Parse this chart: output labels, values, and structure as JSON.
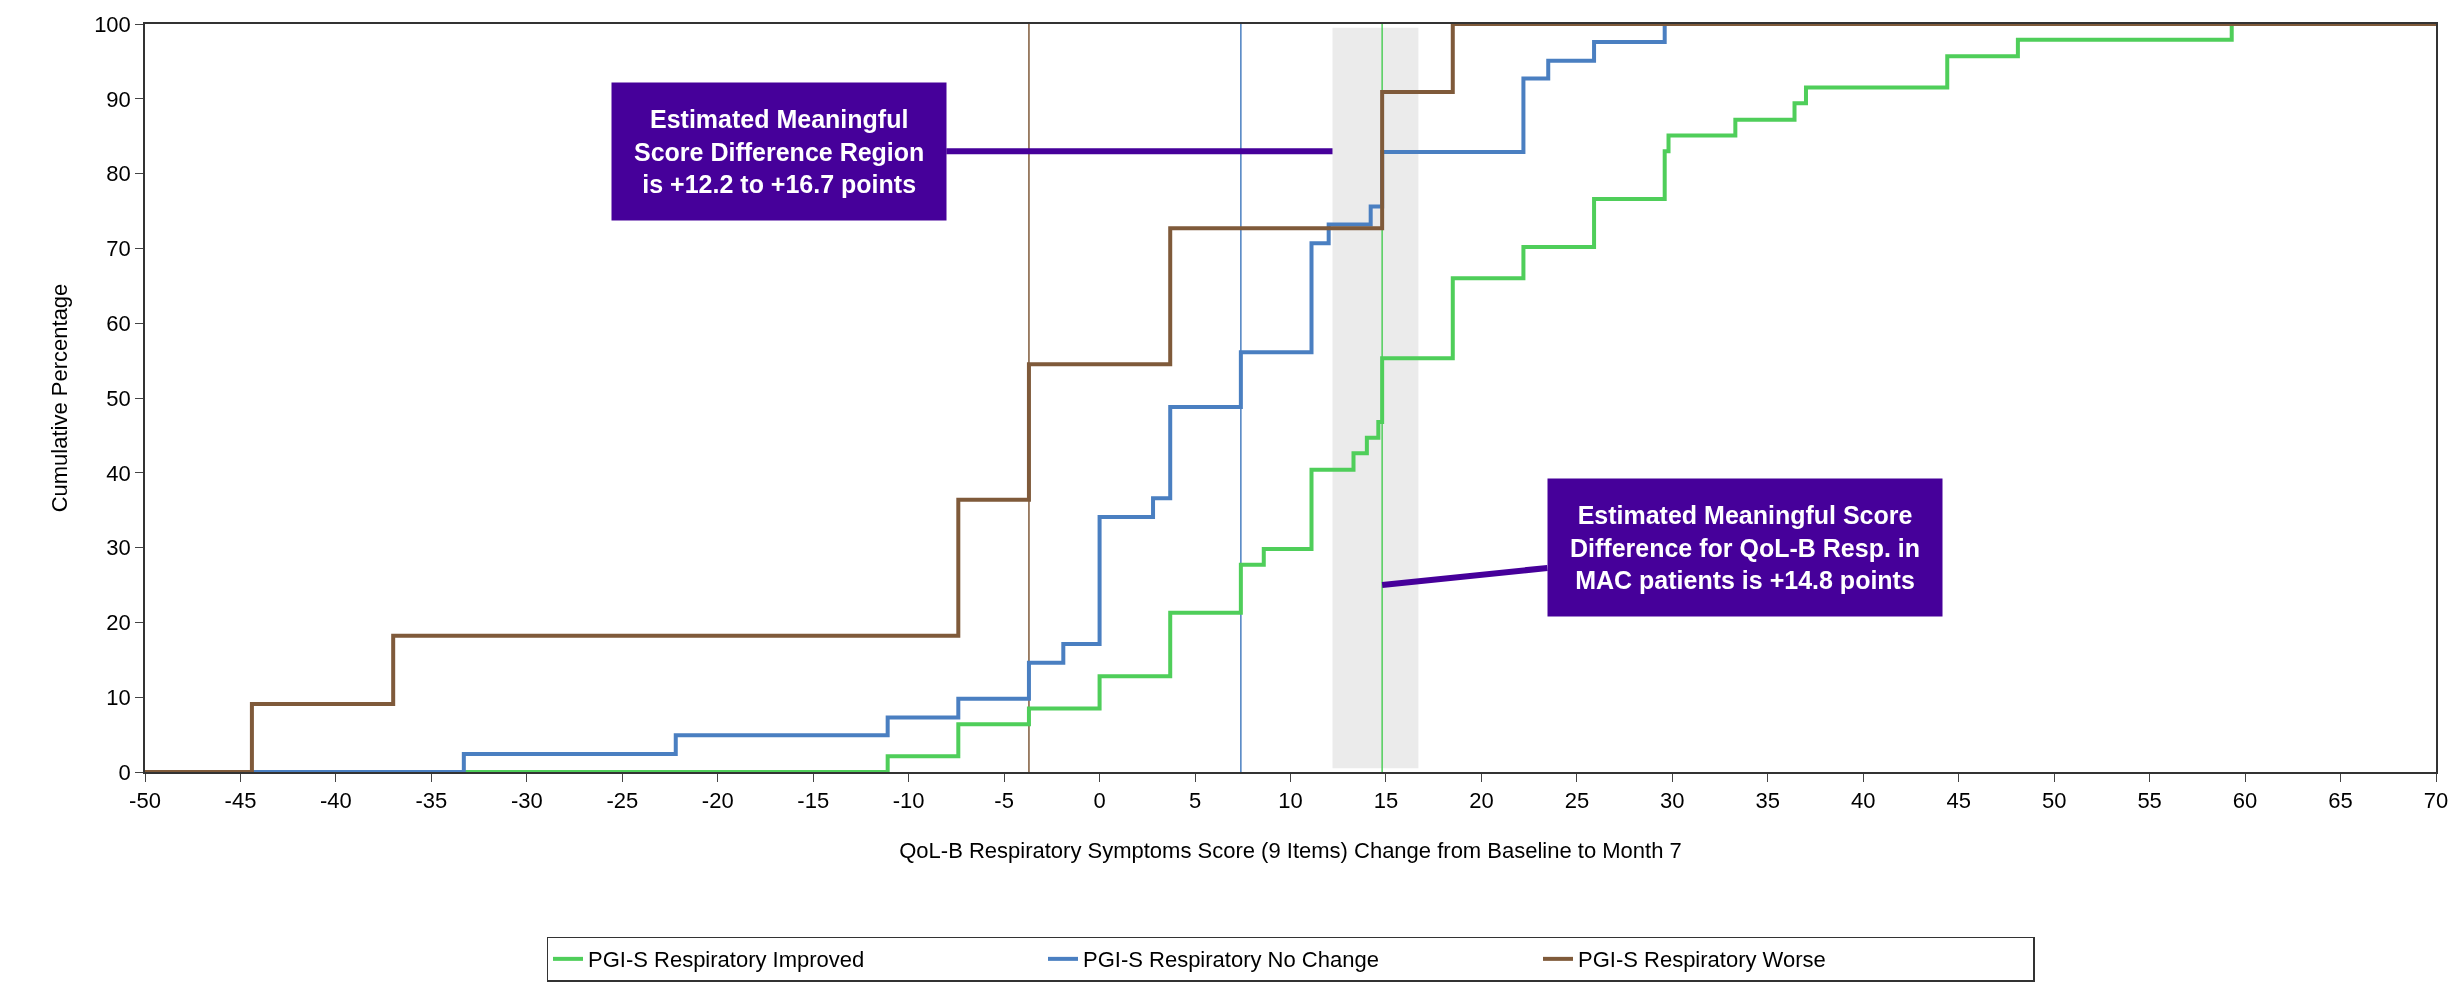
{
  "chart_data": {
    "type": "step",
    "xlabel": "QoL-B Respiratory Symptoms Score (9 Items) Change from Baseline to Month 7",
    "ylabel": "Cumulative Percentage",
    "xlim": [
      -50,
      70
    ],
    "xticks": [
      -50,
      -45,
      -40,
      -35,
      -30,
      -25,
      -20,
      -15,
      -10,
      -5,
      0,
      5,
      10,
      15,
      20,
      25,
      30,
      35,
      40,
      45,
      50,
      55,
      60,
      65,
      70
    ],
    "ylim": [
      0,
      100
    ],
    "yticks": [
      0,
      10,
      20,
      30,
      40,
      50,
      60,
      70,
      80,
      90,
      100
    ],
    "grid": false,
    "legend": "bottom",
    "marker": "none",
    "line_style": "solid",
    "series": [
      {
        "name": "PGI-S Respiratory Improved",
        "color": "#4fce5a",
        "x": [
          -50,
          -11.1,
          -7.4,
          -3.7,
          0,
          3.7,
          7.4,
          8.6,
          11.1,
          13.3,
          14,
          14.6,
          14.8,
          18.5,
          22.2,
          25.9,
          29.6,
          29.8,
          33.3,
          36.4,
          37,
          44.4,
          48.1,
          59.3
        ],
        "values": [
          0,
          2.1,
          6.4,
          8.5,
          12.8,
          21.3,
          27.7,
          29.8,
          40.4,
          42.6,
          44.7,
          46.8,
          55.3,
          66,
          70.2,
          76.6,
          83,
          85.1,
          87.2,
          89.4,
          91.5,
          95.7,
          97.9,
          100
        ]
      },
      {
        "name": "PGI-S Respiratory No Change",
        "color": "#4a7fc1",
        "x": [
          -50,
          -33.3,
          -22.2,
          -11.1,
          -7.4,
          -3.7,
          -1.9,
          0,
          2.8,
          3.7,
          7.4,
          11.1,
          12,
          14.2,
          14.8,
          22.2,
          23.5,
          25.9,
          29.6
        ],
        "values": [
          0,
          2.4,
          4.9,
          7.3,
          9.8,
          14.6,
          17.1,
          34.1,
          36.6,
          48.8,
          56.1,
          70.7,
          73.2,
          75.6,
          82.9,
          92.7,
          95.1,
          97.6,
          100
        ]
      },
      {
        "name": "PGI-S Respiratory Worse",
        "color": "#7f5a3a",
        "x": [
          -50,
          -44.4,
          -37,
          -7.4,
          -3.7,
          3.7,
          14.8,
          18.5,
          70
        ],
        "values": [
          0,
          9.1,
          18.2,
          36.4,
          54.5,
          72.7,
          90.9,
          100,
          100
        ]
      }
    ],
    "ref_lines": [
      {
        "axis": "x",
        "value": -3.7,
        "color": "#7f5a3a"
      },
      {
        "axis": "x",
        "value": 7.4,
        "color": "#4a7fc1"
      },
      {
        "axis": "x",
        "value": 14.8,
        "color": "#4fce5a"
      }
    ],
    "bands": [
      {
        "axis": "x",
        "from": 12.2,
        "to": 16.7,
        "color": "#ebebeb"
      }
    ],
    "annotations": [
      {
        "text": "Estimated Meaningful\nScore Difference Region\nis +12.2 to +16.7 points",
        "x": 12.2,
        "y": 83
      },
      {
        "text": "Estimated Meaningful Score\nDifference for QoL-B Resp. in\nMAC patients is +14.8 points",
        "x": 14.8,
        "y": 25
      }
    ]
  }
}
